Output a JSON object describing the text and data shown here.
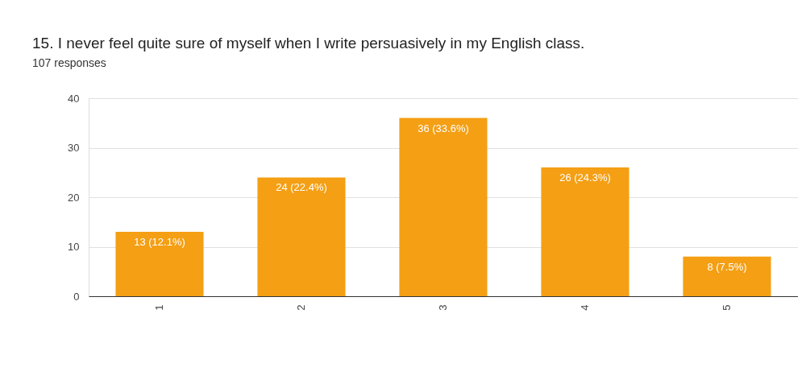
{
  "chart_data": {
    "type": "bar",
    "title": "15. I never feel quite sure of myself when I write persuasively in my English class.",
    "subtitle": "107 responses",
    "categories": [
      "1",
      "2",
      "3",
      "4",
      "5"
    ],
    "values": [
      13,
      24,
      36,
      26,
      8
    ],
    "value_labels": [
      "13 (12.1%)",
      "24 (22.4%)",
      "36 (33.6%)",
      "26 (24.3%)",
      "8 (7.5%)"
    ],
    "color": "#f49f14",
    "ylim": [
      0,
      40
    ],
    "yticks": [
      0,
      10,
      20,
      30,
      40
    ],
    "grid": "y"
  }
}
